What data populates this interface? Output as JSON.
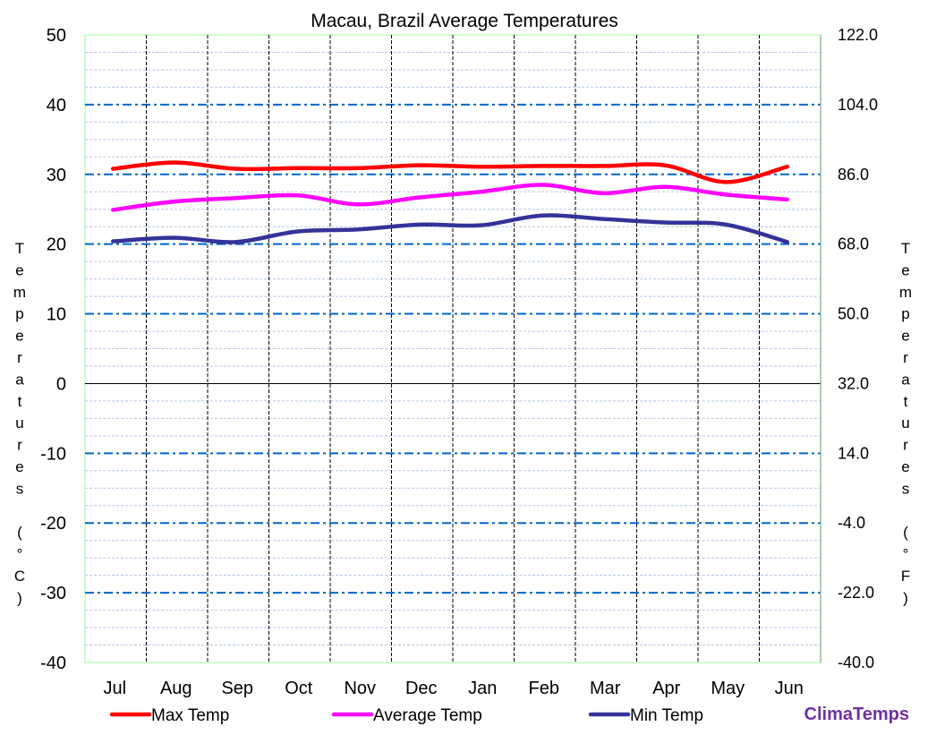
{
  "chart_data": {
    "type": "line",
    "title": "Macau, Brazil Average Temperatures",
    "categories": [
      "Jul",
      "Aug",
      "Sep",
      "Oct",
      "Nov",
      "Dec",
      "Jan",
      "Feb",
      "Mar",
      "Apr",
      "May",
      "Jun"
    ],
    "series": [
      {
        "name": "Max Temp",
        "color": "#ff0000",
        "values": [
          30.8,
          31.7,
          30.8,
          30.9,
          30.9,
          31.3,
          31.1,
          31.2,
          31.2,
          31.3,
          28.9,
          31.1
        ]
      },
      {
        "name": "Average Temp",
        "color": "#ff00ff",
        "values": [
          24.9,
          26.1,
          26.6,
          27.0,
          25.7,
          26.7,
          27.5,
          28.5,
          27.3,
          28.2,
          27.1,
          26.4
        ]
      },
      {
        "name": "Min Temp",
        "color": "#333399",
        "values": [
          20.4,
          20.9,
          20.3,
          21.8,
          22.1,
          22.8,
          22.7,
          24.1,
          23.6,
          23.1,
          22.8,
          20.3
        ]
      }
    ],
    "ylim": [
      -40,
      50
    ],
    "yticks": [
      "50",
      "40",
      "30",
      "20",
      "10",
      "0",
      "-10",
      "-20",
      "-30",
      "-40"
    ],
    "y2ticks": [
      "122.0",
      "104.0",
      "86.0",
      "68.0",
      "50.0",
      "32.0",
      "14.0",
      "-4.0",
      "-22.0",
      "-40.0"
    ],
    "ylabel": "Temperatures (°C)",
    "y2label": "Temperatures (°F)",
    "grid": true,
    "legend": "bottom"
  },
  "brand": "ClimaTemps",
  "brand_color": "#7030a0"
}
